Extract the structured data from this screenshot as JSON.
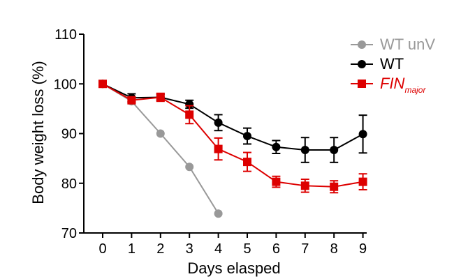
{
  "chart_data": {
    "type": "line",
    "xlabel": "Days elasped",
    "ylabel": "Body weight loss (%)",
    "xlim": [
      0,
      9
    ],
    "ylim": [
      70,
      110
    ],
    "x_ticks": [
      0,
      1,
      2,
      3,
      4,
      5,
      6,
      7,
      8,
      9
    ],
    "y_ticks": [
      70,
      80,
      90,
      100,
      110
    ],
    "grid": false,
    "legend_position": "top-right",
    "series": [
      {
        "name": "WT unV",
        "color": "#999999",
        "marker": "circle",
        "x": [
          0,
          1,
          2,
          3,
          4
        ],
        "values": [
          100,
          96.5,
          90,
          83.3,
          73.9
        ],
        "errors": [
          0,
          0,
          0,
          0,
          0
        ]
      },
      {
        "name": "WT",
        "color": "#000000",
        "marker": "circle",
        "x": [
          0,
          1,
          2,
          3,
          4,
          5,
          6,
          7,
          8,
          9
        ],
        "values": [
          100,
          97.2,
          97.3,
          95.9,
          92.2,
          89.5,
          87.3,
          86.7,
          86.7,
          89.9
        ],
        "errors": [
          0,
          0.8,
          0.6,
          0.8,
          1.6,
          1.6,
          1.3,
          2.5,
          2.5,
          3.8
        ]
      },
      {
        "name": "FIN",
        "name_subscript": "major",
        "color": "#dd0000",
        "marker": "square",
        "x": [
          0,
          1,
          2,
          3,
          4,
          5,
          6,
          7,
          8,
          9
        ],
        "values": [
          100,
          96.7,
          97.3,
          93.8,
          86.9,
          84.3,
          80.3,
          79.5,
          79.3,
          80.3
        ],
        "errors": [
          0,
          0.5,
          0.8,
          1.8,
          2.2,
          1.9,
          1.1,
          1.3,
          1.2,
          1.6
        ]
      }
    ]
  }
}
